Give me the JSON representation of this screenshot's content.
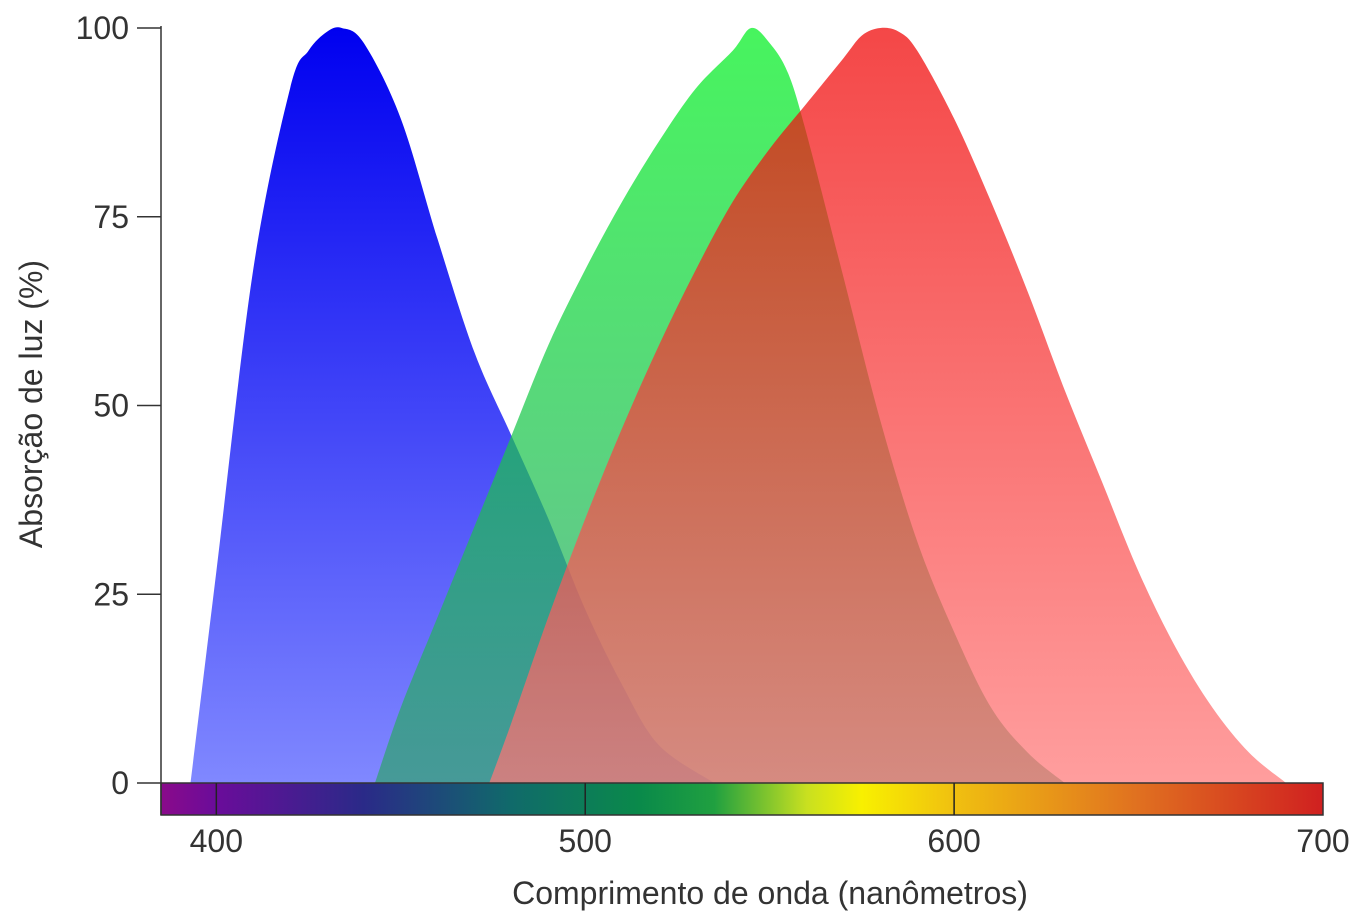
{
  "chart_data": {
    "type": "area",
    "title": "",
    "xlabel": "Comprimento de onda (nanômetros)",
    "ylabel": "Absorção de luz (%)",
    "xlim": [
      385,
      700
    ],
    "ylim": [
      0,
      100
    ],
    "x_ticks": [
      400,
      500,
      600,
      700
    ],
    "y_ticks": [
      0,
      25,
      50,
      75,
      100
    ],
    "grid": false,
    "legend": "none",
    "spectrum_bar": {
      "range": [
        385,
        700
      ],
      "stops": [
        {
          "nm": 385,
          "color": "#8a0a8a"
        },
        {
          "nm": 400,
          "color": "#6a0c9a"
        },
        {
          "nm": 440,
          "color": "#2a2a88"
        },
        {
          "nm": 480,
          "color": "#106a6a"
        },
        {
          "nm": 515,
          "color": "#0a8a4a"
        },
        {
          "nm": 535,
          "color": "#20a040"
        },
        {
          "nm": 560,
          "color": "#c8e020"
        },
        {
          "nm": 575,
          "color": "#f8f000"
        },
        {
          "nm": 600,
          "color": "#f0c010"
        },
        {
          "nm": 650,
          "color": "#e07020"
        },
        {
          "nm": 700,
          "color": "#d02020"
        }
      ]
    },
    "series": [
      {
        "color_top": "#0000f0",
        "color_bottom": "#8088ff",
        "peak_nm": 434,
        "x": [
          393,
          400,
          410,
          420,
          425,
          430,
          434,
          440,
          450,
          460,
          470,
          480,
          490,
          500,
          510,
          520,
          535
        ],
        "y": [
          0,
          28,
          68,
          92,
          97,
          99.5,
          100,
          98,
          88,
          72,
          57,
          46,
          35,
          23,
          13,
          5,
          0
        ]
      },
      {
        "color_top": "#00f020",
        "color_bottom": "#30a070",
        "peak_nm": 545,
        "x": [
          443,
          450,
          460,
          470,
          480,
          490,
          500,
          510,
          520,
          530,
          540,
          545,
          550,
          555,
          560,
          570,
          580,
          590,
          600,
          610,
          620,
          630
        ],
        "y": [
          0,
          10,
          22,
          34,
          46,
          58,
          68,
          77,
          85,
          92,
          97,
          100,
          98,
          94,
          86,
          67,
          48,
          32,
          20,
          10,
          4,
          0
        ]
      },
      {
        "color_top": "#f00000",
        "color_bottom": "#ff7878",
        "peak_nm": 580,
        "x": [
          474,
          480,
          490,
          500,
          510,
          520,
          530,
          540,
          550,
          560,
          570,
          575,
          580,
          585,
          590,
          600,
          610,
          620,
          630,
          640,
          650,
          660,
          670,
          680,
          690
        ],
        "y": [
          0,
          8,
          22,
          35,
          47,
          58,
          68,
          77,
          84,
          90,
          96,
          99,
          100,
          99.5,
          97,
          88,
          77,
          65,
          52,
          40,
          28,
          18,
          10,
          4,
          0
        ]
      }
    ]
  }
}
